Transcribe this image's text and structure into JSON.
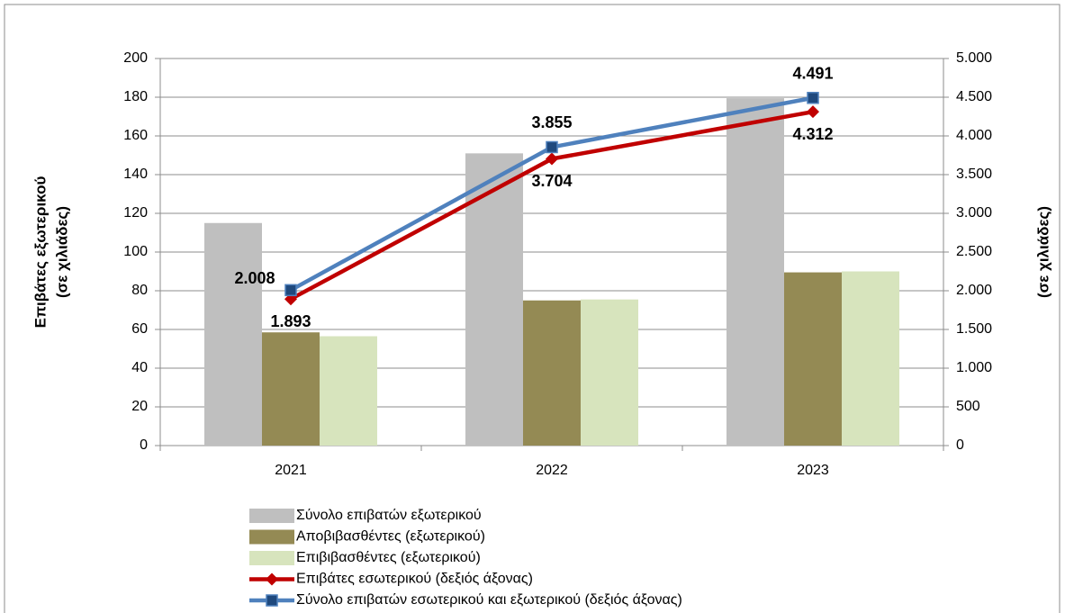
{
  "chart_data": {
    "type": "bar",
    "ylabel": [
      "Επιβάτες εξωτερικού",
      "(σε χιλιάδες)"
    ],
    "y2label": "(σε χιλιάδες)",
    "categories": [
      "2021",
      "2022",
      "2023"
    ],
    "ylim": [
      0,
      200
    ],
    "yticks": [
      0,
      20,
      40,
      60,
      80,
      100,
      120,
      140,
      160,
      180,
      200
    ],
    "y2lim": [
      0,
      5000
    ],
    "y2ticks": [
      0,
      {
        "value": 500,
        "label": "500"
      },
      {
        "value": 1000,
        "label": "1.000"
      },
      {
        "value": 1500,
        "label": "1.500"
      },
      {
        "value": 2000,
        "label": "2.000"
      },
      {
        "value": 2500,
        "label": "2.500"
      },
      {
        "value": 3000,
        "label": "3.000"
      },
      {
        "value": 3500,
        "label": "3.500"
      },
      {
        "value": 4000,
        "label": "4.000"
      },
      {
        "value": 4500,
        "label": "4.500"
      },
      {
        "value": 5000,
        "label": "5.000"
      }
    ],
    "grid": true,
    "legend": "bottom",
    "series": [
      {
        "name": "Σύνολο επιβατών εξωτερικού",
        "color": "#bfbfbf",
        "values": [
          115,
          151,
          179.5
        ]
      },
      {
        "name": "Αποβιβασθέντες (εξωτερικού)",
        "color": "#948a54",
        "values": [
          58.5,
          75,
          89.5
        ]
      },
      {
        "name": "Επιβιβασθέντες (εξωτερικού)",
        "color": "#d7e4bd",
        "values": [
          56.5,
          75.5,
          90
        ]
      },
      {
        "name": "Επιβάτες εσωτερικού (δεξιός άξονας)",
        "color": "#c00000",
        "type": "line",
        "marker": "diamond",
        "axis": "y2",
        "values": [
          1893,
          3704,
          4312
        ],
        "value_labels": [
          "1.893",
          "3.704",
          "4.312"
        ]
      },
      {
        "name": "Σύνολο επιβατών εσωτερικού και εξωτερικού (δεξιός άξονας)",
        "color": "#4f81bd",
        "type": "line",
        "marker": "square",
        "axis": "y2",
        "values": [
          2008,
          3855,
          4491
        ],
        "value_labels": [
          "2.008",
          "3.855",
          "4.491"
        ]
      }
    ]
  }
}
